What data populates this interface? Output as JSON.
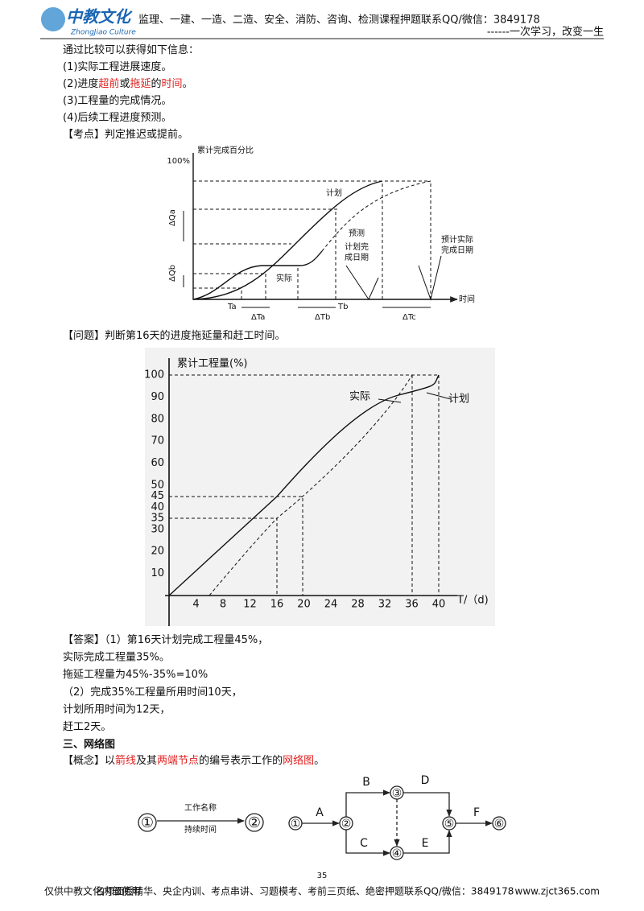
{
  "header": {
    "logo": "中教文化",
    "logo_sub": "ZhongJiao Culture",
    "text": "监理、一建、一造、二造、安全、消防、咨询、检测课程押题联系QQ/微信：3849178",
    "slogan": "------一次学习，改变一生"
  },
  "intro": [
    [
      {
        "text": "通过比较可以获得如下信息："
      }
    ],
    [
      {
        "text": "(1)实际工程进展速度。"
      }
    ],
    [
      {
        "text": "(2)进度"
      },
      {
        "text": "超前",
        "color": "#e02020"
      },
      {
        "text": "或"
      },
      {
        "text": "拖延",
        "color": "#e02020"
      },
      {
        "text": "的"
      },
      {
        "text": "时间",
        "color": "#e02020"
      },
      {
        "text": "。"
      }
    ],
    [
      {
        "text": "(3)工程量的完成情况。"
      }
    ],
    [
      {
        "text": "(4)后续工程进度预测。"
      }
    ],
    [
      {
        "text": "【考点】判定推迟或提前。"
      }
    ]
  ],
  "figure1": {
    "y_label": "累计完成百分比",
    "y_top": "100%",
    "labels": [
      "计划",
      "预测",
      "计划完",
      "成日期",
      "预计实际",
      "完成日期",
      "实际",
      "时间",
      "ΔQa",
      "ΔQb",
      "Ta",
      "ΔTa",
      "ΔTb",
      "Tb",
      "ΔTc"
    ]
  },
  "question": [
    [
      {
        "text": "【问题】判断第16天的进度拖延量和赶工时间。"
      }
    ]
  ],
  "figure2": {
    "y_label": "累计工程量(%)",
    "x_label": "T/（d)",
    "xticks": [
      4,
      8,
      12,
      16,
      20,
      24,
      28,
      32,
      36,
      40
    ],
    "yticks": [
      10,
      20,
      30,
      35,
      40,
      45,
      50,
      60,
      70,
      80,
      90,
      100
    ],
    "labels": [
      "实际",
      "计划"
    ]
  },
  "answer": [
    [
      {
        "text": "【答案】（1）第16天计划完成工程量45%，"
      }
    ],
    [
      {
        "text": "实际完成工程量35%。"
      }
    ],
    [
      {
        "text": "拖延工程量为45%-35%=10%"
      }
    ],
    [
      {
        "text": "（2）完成35%工程量所用时间10天，"
      }
    ],
    [
      {
        "text": "计划所用时间为12天，"
      }
    ],
    [
      {
        "text": "赶工2天。"
      }
    ]
  ],
  "heading": [
    [
      {
        "text": "三、网络图",
        "bold": true
      }
    ]
  ],
  "concept": [
    [
      {
        "text": "【概念】以"
      },
      {
        "text": "箭线",
        "color": "#e02020"
      },
      {
        "text": "及其"
      },
      {
        "text": "两端节点",
        "color": "#e02020"
      },
      {
        "text": "的编号表示工作的"
      },
      {
        "text": "网络图",
        "color": "#e02020"
      },
      {
        "text": "。"
      }
    ]
  ],
  "network": {
    "left": {
      "from": "①",
      "to": "②",
      "name": "工作名称",
      "duration": "持续时间"
    },
    "nodes": [
      "①",
      "②",
      "③",
      "④",
      "⑤",
      "⑥"
    ],
    "activities": [
      "A",
      "B",
      "C",
      "D",
      "E",
      "F"
    ]
  },
  "footer": {
    "page": "35",
    "left": "仅供中教文化内部使用",
    "middle": "名师面授精华、央企内训、考点串讲、习题模考、考前三页纸、绝密押题联系QQ/微信：3849178",
    "url": "www.zjct365.com"
  }
}
